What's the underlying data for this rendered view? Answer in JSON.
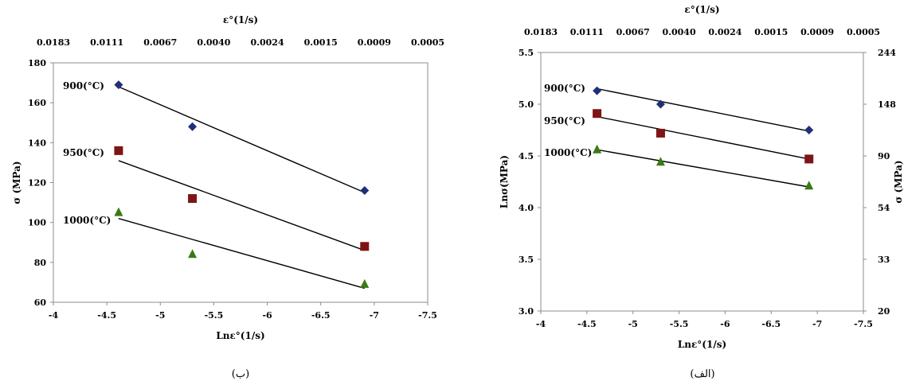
{
  "chart_data": [
    {
      "type": "scatter",
      "caption": "(ب)",
      "xlabel": "Lnε°(1/s)",
      "ylabel": "σ (MPa)",
      "top_xlabel": "ε°(1/s)",
      "xlim": [
        -4,
        -7.5
      ],
      "ylim": [
        60,
        180
      ],
      "x_ticks": [
        "-4",
        "-4.5",
        "-5",
        "-5.5",
        "-6",
        "-6.5",
        "-7",
        "-7.5"
      ],
      "y_ticks": [
        "60",
        "80",
        "100",
        "120",
        "140",
        "160",
        "180"
      ],
      "top_x_ticks": [
        "0.0183",
        "0.0111",
        "0.0067",
        "0.0040",
        "0.0024",
        "0.0015",
        "0.0009",
        "0.0005"
      ],
      "grid": false,
      "legend": "inline labels",
      "series": [
        {
          "name": "900(°C)",
          "color": "#1f2f7a",
          "marker": "diamond",
          "x": [
            -4.61,
            -5.3,
            -6.91
          ],
          "y": [
            169,
            148,
            116
          ],
          "fit": {
            "x": [
              -4.61,
              -6.91
            ],
            "y": [
              168,
              115
            ]
          }
        },
        {
          "name": "950(°C)",
          "color": "#7f1414",
          "marker": "square",
          "x": [
            -4.61,
            -5.3,
            -6.91
          ],
          "y": [
            136,
            112,
            88
          ],
          "fit": {
            "x": [
              -4.61,
              -6.91
            ],
            "y": [
              131,
              86
            ]
          }
        },
        {
          "name": "1000(°C)",
          "color": "#3a7a14",
          "marker": "triangle",
          "x": [
            -4.61,
            -5.3,
            -6.91
          ],
          "y": [
            105,
            84,
            69
          ],
          "fit": {
            "x": [
              -4.61,
              -6.91
            ],
            "y": [
              102,
              67
            ]
          }
        }
      ]
    },
    {
      "type": "scatter",
      "caption": "(الف)",
      "xlabel": "Lnε°(1/s)",
      "ylabel": "Lnσ(MPa)",
      "right_ylabel": "σ (MPa)",
      "top_xlabel": "ε°(1/s)",
      "xlim": [
        -4,
        -7.5
      ],
      "ylim": [
        3.0,
        5.5
      ],
      "x_ticks": [
        "-4",
        "-4.5",
        "-5",
        "-5.5",
        "-6",
        "-6.5",
        "-7",
        "-7.5"
      ],
      "y_ticks": [
        "3.0",
        "3.5",
        "4.0",
        "4.5",
        "5.0",
        "5.5"
      ],
      "right_y_ticks": [
        "20",
        "33",
        "54",
        "90",
        "148",
        "244"
      ],
      "top_x_ticks": [
        "0.0183",
        "0.0111",
        "0.0067",
        "0.0040",
        "0.0024",
        "0.0015",
        "0.0009",
        "0.0005"
      ],
      "grid": false,
      "legend": "inline labels",
      "series": [
        {
          "name": "900(°C)",
          "color": "#1f2f7a",
          "marker": "diamond",
          "x": [
            -4.61,
            -5.3,
            -6.91
          ],
          "y": [
            5.13,
            5.0,
            4.75
          ],
          "fit": {
            "x": [
              -4.61,
              -6.91
            ],
            "y": [
              5.15,
              4.74
            ]
          }
        },
        {
          "name": "950(°C)",
          "color": "#7f1414",
          "marker": "square",
          "x": [
            -4.61,
            -5.3,
            -6.91
          ],
          "y": [
            4.91,
            4.72,
            4.47
          ],
          "fit": {
            "x": [
              -4.61,
              -6.91
            ],
            "y": [
              4.88,
              4.47
            ]
          }
        },
        {
          "name": "1000(°C)",
          "color": "#3a7a14",
          "marker": "triangle",
          "x": [
            -4.61,
            -5.3,
            -6.91
          ],
          "y": [
            4.56,
            4.44,
            4.21
          ],
          "fit": {
            "x": [
              -4.61,
              -6.91
            ],
            "y": [
              4.56,
              4.2
            ]
          }
        }
      ]
    }
  ]
}
